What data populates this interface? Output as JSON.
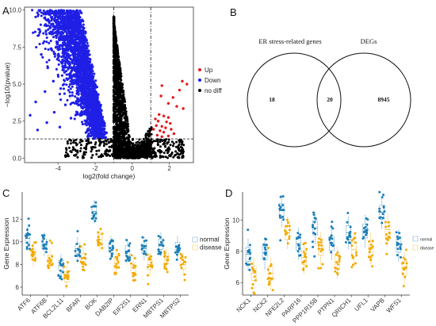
{
  "panels": {
    "A": "A",
    "B": "B",
    "C": "C",
    "D": "D"
  },
  "chart_data": [
    {
      "panel": "A",
      "type": "scatter",
      "xlabel": "log2(fold change)",
      "ylabel": "−log10(pvalue)",
      "xlim": [
        -5.8,
        3.3
      ],
      "ylim": [
        -0.3,
        10.2
      ],
      "xticks": [
        "-4",
        "-2",
        "0",
        "2"
      ],
      "yticks": [
        "0.0",
        "2.5",
        "5.0",
        "7.5",
        "10.0"
      ],
      "threshold_lines": {
        "fold_change": [
          -1,
          1
        ],
        "pvalue": 1.3
      },
      "legend": {
        "items": [
          {
            "label": "Up",
            "color": "#e41a1c"
          },
          {
            "label": "Down",
            "color": "#1f1fe6"
          },
          {
            "label": "no diff",
            "color": "#000000"
          }
        ],
        "position": "right"
      },
      "series": [
        {
          "name": "Up",
          "color": "#e41a1c",
          "points": [
            [
              2.55,
              4.6
            ],
            [
              2.7,
              5.2
            ],
            [
              2.95,
              5.0
            ],
            [
              1.6,
              4.9
            ],
            [
              2.2,
              4.1
            ],
            [
              1.55,
              4.2
            ],
            [
              2.4,
              3.5
            ],
            [
              2.75,
              3.35
            ],
            [
              1.95,
              3.7
            ],
            [
              1.45,
              2.95
            ],
            [
              1.7,
              2.85
            ],
            [
              1.95,
              2.75
            ],
            [
              1.25,
              2.65
            ],
            [
              1.4,
              2.5
            ],
            [
              1.85,
              2.45
            ],
            [
              2.05,
              2.35
            ],
            [
              1.3,
              2.2
            ],
            [
              1.6,
              2.15
            ],
            [
              1.8,
              2.05
            ],
            [
              2.1,
              1.95
            ],
            [
              1.5,
              1.85
            ],
            [
              1.7,
              1.75
            ],
            [
              2.25,
              1.65
            ],
            [
              1.35,
              1.55
            ],
            [
              1.95,
              1.5
            ],
            [
              1.15,
              1.95
            ],
            [
              1.6,
              1.45
            ]
          ]
        },
        {
          "name": "Down",
          "color": "#1f1fe6",
          "density": "dense band between x=-3.0 and x=-1.0 spanning y=1.3 to 10.0",
          "points": [
            [
              -5.5,
              2.9
            ],
            [
              -5.2,
              3.8
            ],
            [
              -5.1,
              1.9
            ],
            [
              -4.9,
              7.0
            ],
            [
              -4.7,
              4.5
            ],
            [
              -4.6,
              2.4
            ],
            [
              -4.55,
              6.1
            ],
            [
              -4.5,
              9.9
            ],
            [
              -4.3,
              8.4
            ],
            [
              -4.25,
              5.2
            ],
            [
              -4.2,
              3.1
            ],
            [
              -4.1,
              9.6
            ],
            [
              -3.95,
              6.9
            ],
            [
              -3.9,
              2.1
            ],
            [
              -3.85,
              4.7
            ],
            [
              -3.8,
              9.8
            ],
            [
              -3.7,
              8.0
            ],
            [
              -3.65,
              5.8
            ],
            [
              -3.6,
              3.6
            ],
            [
              -3.55,
              7.4
            ],
            [
              -3.5,
              9.9
            ],
            [
              -3.45,
              6.4
            ],
            [
              -3.4,
              8.9
            ],
            [
              -3.35,
              4.2
            ],
            [
              -3.3,
              2.7
            ]
          ]
        },
        {
          "name": "no diff",
          "color": "#000000",
          "density": "dense V-shaped cloud between x=-1.0 and x=1.0 below y=10, plus low-significance band near y=0 to 1.3"
        }
      ]
    },
    {
      "panel": "B",
      "type": "venn",
      "sets": [
        {
          "name": "ER stress-related genes",
          "only": "18"
        },
        {
          "name": "DEGs",
          "only": "8945"
        }
      ],
      "intersection": "20"
    },
    {
      "panel": "C",
      "type": "boxplot",
      "ylabel": "Gene Expression",
      "ylim": [
        5.3,
        14.4
      ],
      "yticks": [
        "6",
        "8",
        "10",
        "12"
      ],
      "categories": [
        "ATF6",
        "ATF6B",
        "BCL2L11",
        "BFAR",
        "BOK",
        "DAB2IP",
        "EIF2S1",
        "ERN1",
        "MBTPS1",
        "MBTPS2"
      ],
      "legend": {
        "position": "right"
      },
      "series": [
        {
          "name": "normal",
          "color": "#1b7fb6",
          "medians": [
            10.3,
            9.8,
            7.9,
            9.4,
            12.7,
            9.5,
            9.2,
            9.4,
            9.8,
            9.5
          ]
        },
        {
          "name": "disease",
          "color": "#f2a900",
          "medians": [
            8.9,
            8.4,
            6.9,
            8.5,
            10.2,
            8.1,
            7.7,
            8.0,
            8.5,
            8.0
          ]
        }
      ]
    },
    {
      "panel": "D",
      "type": "boxplot",
      "ylabel": "Gene Expression",
      "ylim": [
        5.2,
        11.8
      ],
      "yticks": [
        "6",
        "8",
        "10"
      ],
      "categories": [
        "NCK1",
        "NCK2",
        "NFE2L2",
        "PARP16",
        "PPP1R15B",
        "PTPN1",
        "QRICH1",
        "UFL1",
        "VAPB",
        "WFS1"
      ],
      "legend": {
        "position": "right"
      },
      "series": [
        {
          "name": "normal",
          "color": "#1b7fb6",
          "medians": [
            7.8,
            7.9,
            10.6,
            8.5,
            9.5,
            8.5,
            9.2,
            9.3,
            10.5,
            8.4
          ]
        },
        {
          "name": "disease",
          "color": "#f2a900",
          "medians": [
            6.6,
            6.6,
            9.2,
            7.6,
            8.2,
            7.3,
            8.1,
            8.2,
            9.4,
            6.9
          ]
        }
      ]
    }
  ]
}
